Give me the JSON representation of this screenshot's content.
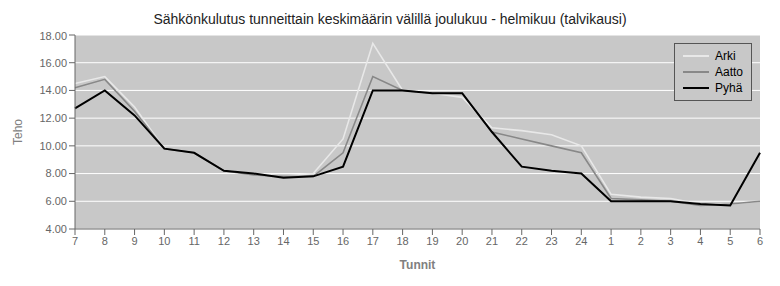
{
  "chart_data": {
    "type": "line",
    "title": "Sähkönkulutus tunneittain keskimäärin välillä joulukuu - helmikuu (talvikausi)",
    "x_label": "Tunnit",
    "y_label": "Teho",
    "categories": [
      "7",
      "8",
      "9",
      "10",
      "11",
      "12",
      "13",
      "14",
      "15",
      "16",
      "17",
      "18",
      "19",
      "20",
      "21",
      "22",
      "23",
      "24",
      "1",
      "2",
      "3",
      "4",
      "5",
      "6"
    ],
    "series": [
      {
        "name": "Arki",
        "color": "#e8e8e8",
        "values": [
          14.5,
          15.0,
          12.8,
          9.8,
          9.5,
          8.2,
          8.0,
          7.8,
          8.0,
          10.5,
          17.4,
          14.0,
          13.8,
          13.5,
          11.3,
          11.1,
          10.8,
          10.0,
          6.5,
          6.3,
          6.2,
          5.8,
          5.8,
          6.0
        ]
      },
      {
        "name": "Aatto",
        "color": "#888888",
        "values": [
          14.2,
          14.8,
          12.5,
          9.8,
          9.5,
          8.2,
          7.9,
          7.8,
          7.8,
          9.5,
          15.0,
          14.0,
          13.8,
          13.8,
          11.0,
          10.5,
          10.0,
          9.5,
          6.2,
          6.1,
          6.0,
          5.7,
          5.8,
          6.0
        ]
      },
      {
        "name": "Pyhä",
        "color": "#000000",
        "values": [
          12.7,
          14.0,
          12.2,
          9.8,
          9.5,
          8.2,
          8.0,
          7.7,
          7.8,
          8.5,
          14.0,
          14.0,
          13.8,
          13.8,
          11.0,
          8.5,
          8.2,
          8.0,
          6.0,
          6.0,
          6.0,
          5.8,
          5.7,
          9.5
        ]
      }
    ],
    "ylim": [
      4.0,
      18.0
    ],
    "yticks": [
      {
        "value": 4.0,
        "label": "4.00"
      },
      {
        "value": 6.0,
        "label": "6.00"
      },
      {
        "value": 8.0,
        "label": "8.00"
      },
      {
        "value": 10.0,
        "label": "10.00"
      },
      {
        "value": 12.0,
        "label": "12.00"
      },
      {
        "value": 14.0,
        "label": "14.00"
      },
      {
        "value": 16.0,
        "label": "16.00"
      },
      {
        "value": 18.0,
        "label": "18.00"
      }
    ],
    "grid": true,
    "legend": "upper right"
  }
}
